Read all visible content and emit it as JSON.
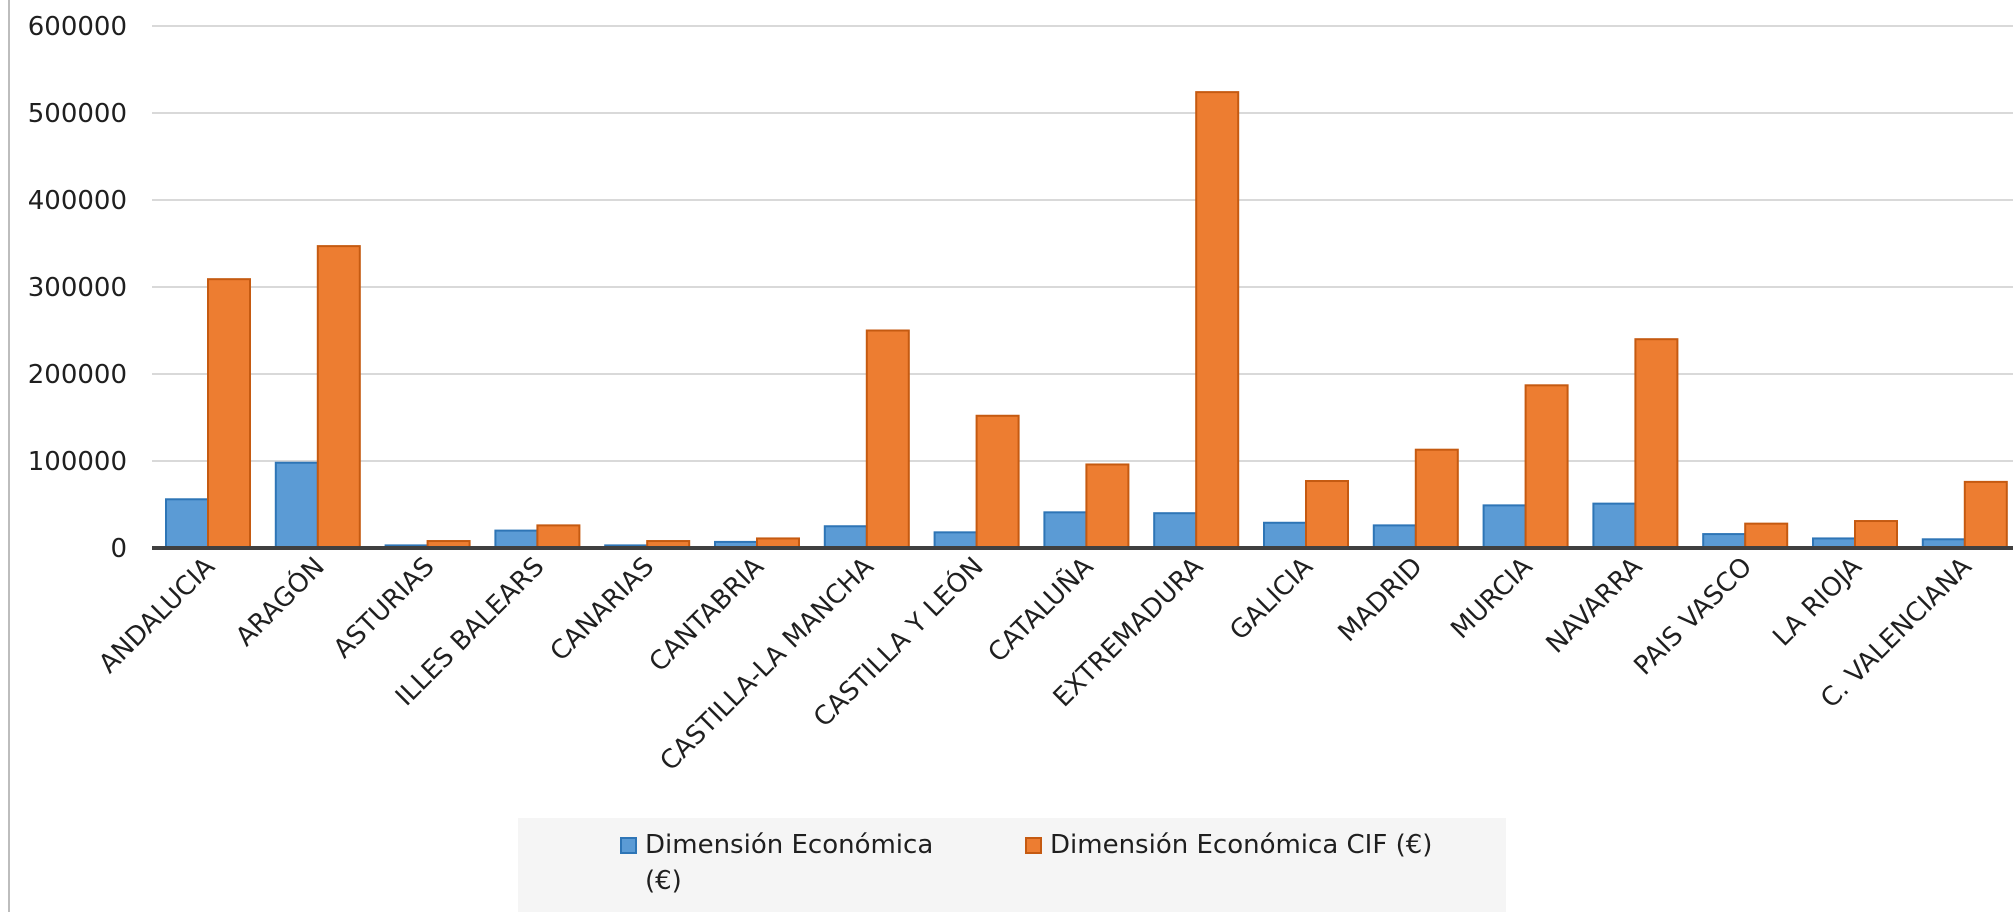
{
  "chart_data": {
    "type": "bar",
    "title": "",
    "xlabel": "",
    "ylabel": "",
    "ylim": [
      0,
      600000
    ],
    "yticks": [
      "0",
      "100000",
      "200000",
      "300000",
      "400000",
      "500000",
      "600000"
    ],
    "grid": true,
    "legend_position": "bottom",
    "categories": [
      "ANDALUCIA",
      "ARAGÓN",
      "ASTURIAS",
      "ILLES BALEARS",
      "CANARIAS",
      "CANTABRIA",
      "CASTILLA-LA MANCHA",
      "CASTILLA Y LEÓN",
      "CATALUÑA",
      "EXTREMADURA",
      "GALICIA",
      "MADRID",
      "MURCIA",
      "NAVARRA",
      "PAIS VASCO",
      "LA RIOJA",
      "C. VALENCIANA"
    ],
    "series": [
      {
        "name": "Dimensión Económica (€)",
        "color": "#5b9bd5",
        "border": "#2e75b6",
        "values": [
          56000,
          98000,
          3000,
          20000,
          3000,
          7000,
          25000,
          18000,
          41000,
          40000,
          29000,
          26000,
          49000,
          51000,
          16000,
          11000,
          10000
        ]
      },
      {
        "name": "Dimensión Económica CIF (€)",
        "color": "#ed7d31",
        "border": "#c55a11",
        "values": [
          309000,
          347000,
          8000,
          26000,
          8000,
          11000,
          250000,
          152000,
          96000,
          524000,
          77000,
          113000,
          187000,
          240000,
          28000,
          31000,
          76000
        ]
      }
    ]
  },
  "legend": {
    "item1_line1": "Dimensión Económica",
    "item1_line2": "(€)",
    "item2": "Dimensión Económica CIF (€)"
  }
}
